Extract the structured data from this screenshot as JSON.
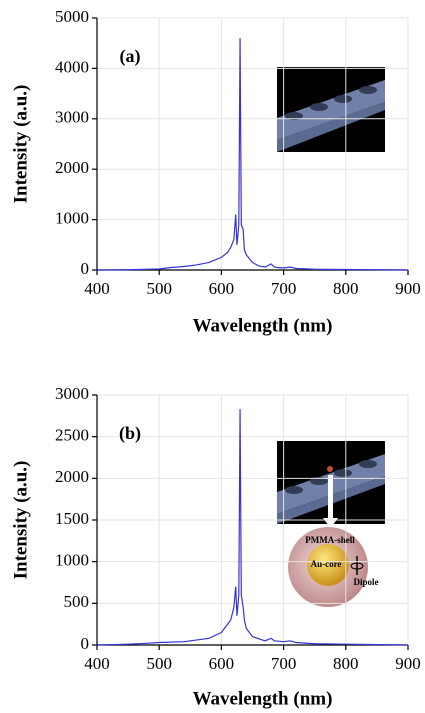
{
  "chart_data": [
    {
      "type": "line",
      "label": "(a)",
      "x_label": "Wavelength (nm)",
      "y_label": "Intensity (a.u.)",
      "xlim": [
        400,
        900
      ],
      "xticks": [
        400,
        500,
        600,
        700,
        800,
        900
      ],
      "ylim": [
        0,
        5000
      ],
      "yticks": [
        0,
        1000,
        2000,
        3000,
        4000,
        5000
      ],
      "grid": true,
      "series": [
        {
          "color": "#3434d8",
          "x": [
            400,
            450,
            500,
            520,
            540,
            560,
            580,
            600,
            610,
            615,
            620,
            623,
            625,
            628,
            630,
            632,
            635,
            637,
            640,
            650,
            660,
            670,
            680,
            685,
            690,
            700,
            710,
            720,
            750,
            800,
            850,
            900
          ],
          "values": [
            0,
            5,
            20,
            50,
            70,
            100,
            150,
            250,
            350,
            450,
            600,
            1100,
            500,
            900,
            4600,
            900,
            800,
            400,
            300,
            150,
            80,
            60,
            120,
            60,
            50,
            40,
            60,
            30,
            15,
            10,
            5,
            0
          ]
        }
      ]
    },
    {
      "type": "line",
      "label": "(b)",
      "x_label": "Wavelength (nm)",
      "y_label": "Intensity (a.u.)",
      "inset_labels": [
        "PMMA-shell",
        "Au-core",
        "Dipole"
      ],
      "xlim": [
        400,
        900
      ],
      "xticks": [
        400,
        500,
        600,
        700,
        800,
        900
      ],
      "ylim": [
        0,
        3000
      ],
      "yticks": [
        0,
        500,
        1000,
        1500,
        2000,
        2500,
        3000
      ],
      "grid": true,
      "series": [
        {
          "color": "#3434d8",
          "x": [
            400,
            450,
            480,
            500,
            540,
            580,
            600,
            610,
            615,
            620,
            623,
            625,
            628,
            630,
            632,
            635,
            637,
            640,
            650,
            670,
            680,
            685,
            700,
            710,
            720,
            750,
            800,
            900
          ],
          "values": [
            0,
            10,
            20,
            30,
            40,
            80,
            150,
            250,
            300,
            450,
            700,
            350,
            600,
            2830,
            600,
            450,
            300,
            200,
            100,
            50,
            80,
            50,
            40,
            50,
            30,
            15,
            10,
            0
          ]
        }
      ]
    }
  ]
}
